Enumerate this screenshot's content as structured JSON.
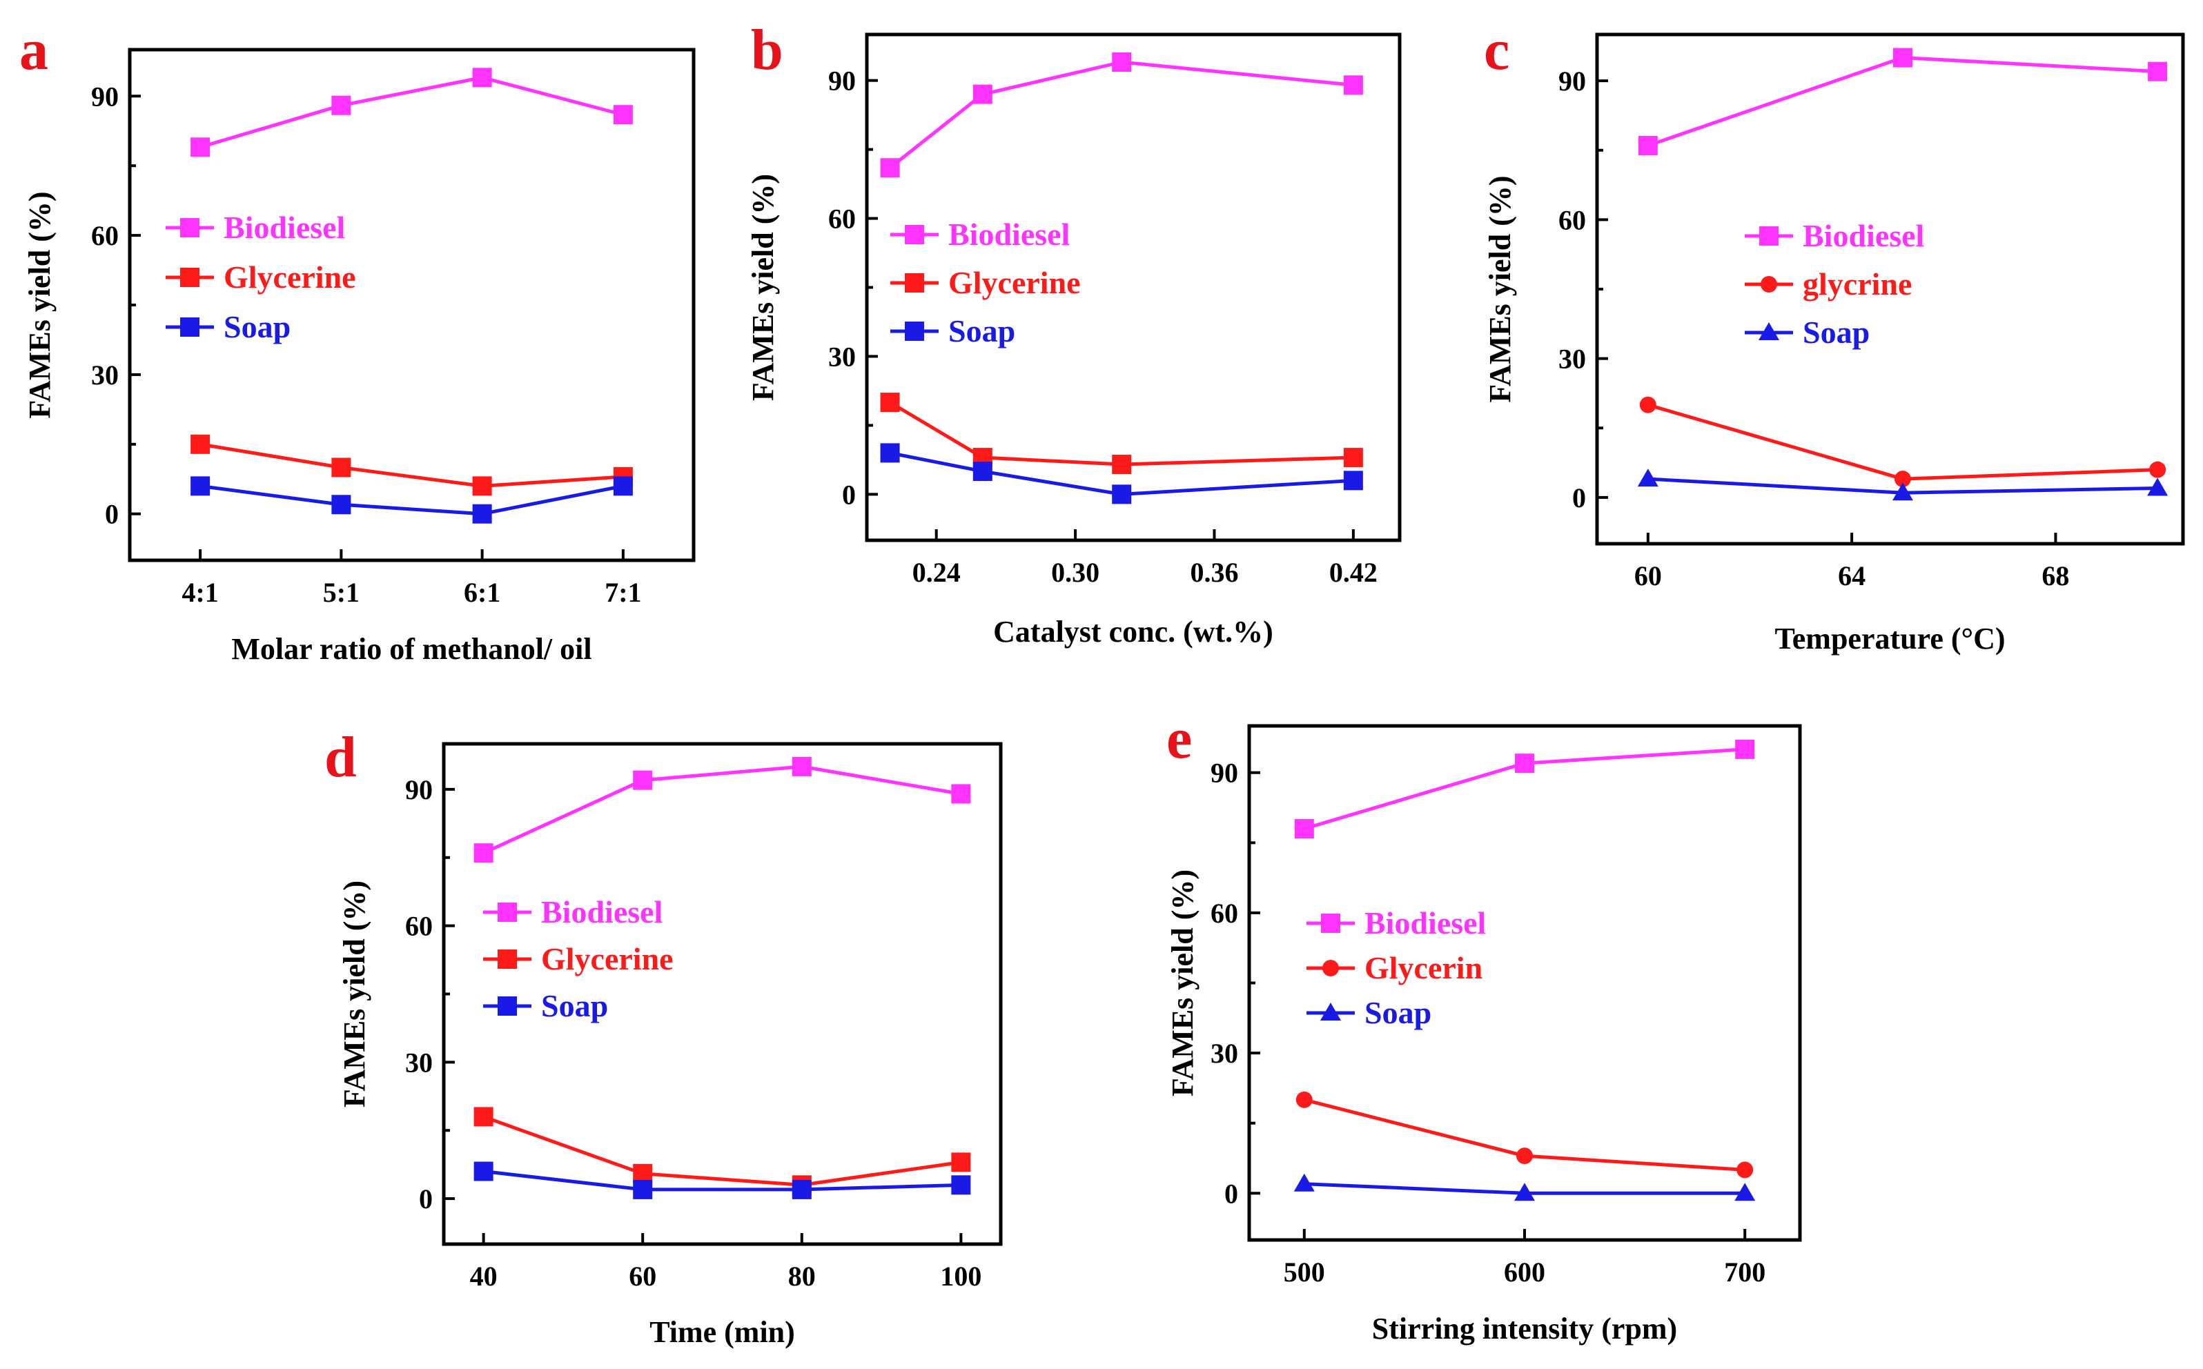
{
  "colors": {
    "biodiesel": "#ff33ff",
    "glycerine": "#ff1a1a",
    "soap": "#1a1ae6",
    "letter": "#e8121b"
  },
  "chart_data": [
    {
      "panel": "a",
      "type": "line",
      "xlabel": "Molar ratio of methanol/ oil",
      "ylabel": "FAMEs yield (%)",
      "categories": [
        "4:1",
        "5:1",
        "6:1",
        "7:1"
      ],
      "x": [
        4,
        5,
        6,
        7
      ],
      "xlim": [
        3.5,
        7.5
      ],
      "xticks": [
        4,
        5,
        6,
        7
      ],
      "xtick_labels": [
        "4:1",
        "5:1",
        "6:1",
        "7:1"
      ],
      "ylim": [
        -10,
        100
      ],
      "yticks": [
        0,
        30,
        60,
        90
      ],
      "ytick_labels": [
        "0",
        "30",
        "60",
        "90"
      ],
      "series": [
        {
          "name": "Biodiesel",
          "color": "#ff33ff",
          "marker": "square",
          "values": [
            79,
            88,
            94,
            86
          ]
        },
        {
          "name": "Glycerine",
          "color": "#ff1a1a",
          "marker": "square",
          "values": [
            15,
            10,
            6,
            8
          ]
        },
        {
          "name": "Soap",
          "color": "#1a1ae6",
          "marker": "square",
          "values": [
            6,
            2,
            0,
            6
          ]
        }
      ]
    },
    {
      "panel": "b",
      "type": "line",
      "xlabel": "Catalyst conc. (wt.%)",
      "ylabel": "FAMEs yield (%)",
      "x": [
        0.22,
        0.26,
        0.32,
        0.42
      ],
      "xlim": [
        0.21,
        0.44
      ],
      "xticks": [
        0.24,
        0.3,
        0.36,
        0.42
      ],
      "xtick_labels": [
        "0.24",
        "0.30",
        "0.36",
        "0.42"
      ],
      "ylim": [
        -10,
        100
      ],
      "yticks": [
        0,
        30,
        60,
        90
      ],
      "ytick_labels": [
        "0",
        "30",
        "60",
        "90"
      ],
      "series": [
        {
          "name": "Biodiesel",
          "color": "#ff33ff",
          "marker": "square",
          "values": [
            71,
            87,
            94,
            89
          ]
        },
        {
          "name": "Glycerine",
          "color": "#ff1a1a",
          "marker": "square",
          "values": [
            20,
            8,
            6.5,
            8
          ]
        },
        {
          "name": "Soap",
          "color": "#1a1ae6",
          "marker": "square",
          "values": [
            9,
            5,
            0,
            3
          ]
        }
      ]
    },
    {
      "panel": "c",
      "type": "line",
      "xlabel": "Temperature (°C)",
      "ylabel": "FAMEs yield (%)",
      "x": [
        60,
        65,
        70
      ],
      "xlim": [
        59,
        70.5
      ],
      "xticks": [
        60,
        64,
        68
      ],
      "xtick_labels": [
        "60",
        "64",
        "68"
      ],
      "ylim": [
        -10,
        100
      ],
      "yticks": [
        0,
        30,
        60,
        90
      ],
      "ytick_labels": [
        "0",
        "30",
        "60",
        "90"
      ],
      "series": [
        {
          "name": "Biodiesel",
          "color": "#ff33ff",
          "marker": "square",
          "values": [
            76,
            95,
            92
          ]
        },
        {
          "name": "glycrine",
          "color": "#ff1a1a",
          "marker": "circle",
          "values": [
            20,
            4,
            6
          ]
        },
        {
          "name": "Soap",
          "color": "#1a1ae6",
          "marker": "triangle",
          "values": [
            4,
            1,
            2
          ]
        }
      ]
    },
    {
      "panel": "d",
      "type": "line",
      "xlabel": "Time (min)",
      "ylabel": "FAMEs yield (%)",
      "x": [
        40,
        60,
        80,
        100
      ],
      "xlim": [
        35,
        105
      ],
      "xticks": [
        40,
        60,
        80,
        100
      ],
      "xtick_labels": [
        "40",
        "60",
        "80",
        "100"
      ],
      "ylim": [
        -10,
        100
      ],
      "yticks": [
        0,
        30,
        60,
        90
      ],
      "ytick_labels": [
        "0",
        "30",
        "60",
        "90"
      ],
      "series": [
        {
          "name": "Biodiesel",
          "color": "#ff33ff",
          "marker": "square",
          "values": [
            76,
            92,
            95,
            89
          ]
        },
        {
          "name": "Glycerine",
          "color": "#ff1a1a",
          "marker": "square",
          "values": [
            18,
            5.5,
            3,
            8
          ]
        },
        {
          "name": "Soap",
          "color": "#1a1ae6",
          "marker": "square",
          "values": [
            6,
            2,
            2,
            3
          ]
        }
      ]
    },
    {
      "panel": "e",
      "type": "line",
      "xlabel": "Stirring intensity (rpm)",
      "ylabel": "FAMEs yield (%)",
      "x": [
        500,
        600,
        700
      ],
      "xlim": [
        475,
        725
      ],
      "xticks": [
        500,
        600,
        700
      ],
      "xtick_labels": [
        "500",
        "600",
        "700"
      ],
      "ylim": [
        -10,
        100
      ],
      "yticks": [
        0,
        30,
        60,
        90
      ],
      "ytick_labels": [
        "0",
        "30",
        "60",
        "90"
      ],
      "series": [
        {
          "name": "Biodiesel",
          "color": "#ff33ff",
          "marker": "square",
          "values": [
            78,
            92,
            95
          ]
        },
        {
          "name": "Glycerin",
          "color": "#ff1a1a",
          "marker": "circle",
          "values": [
            20,
            8,
            5
          ]
        },
        {
          "name": "Soap",
          "color": "#1a1ae6",
          "marker": "triangle",
          "values": [
            2,
            0,
            0
          ]
        }
      ]
    }
  ]
}
